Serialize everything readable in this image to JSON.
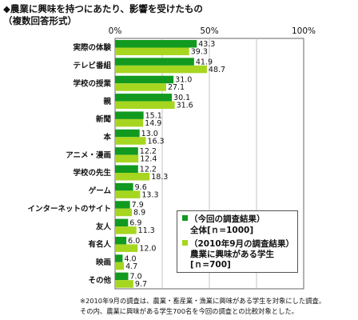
{
  "header": {
    "title": "◆農業に興味を持つにあたり、影響を受けたもの",
    "subtitle": "（複数回答形式）"
  },
  "legend": {
    "s1_line1": "（今回の調査結果）",
    "s1_line2": "全体[ｎ=1000]",
    "s2_line1": "（2010年9月の調査結果）",
    "s2_line2": "農業に興味がある学生",
    "s2_line3": "[ｎ=700]"
  },
  "notes": {
    "line1": "※2010年9月の調査は、農業・畜産業・漁業に興味がある学生を対象にした調査。",
    "line2": "その内、農業に興味がある学生700名を今回の調査との比較対象とした。"
  },
  "chart_data": {
    "type": "bar",
    "orientation": "horizontal",
    "categories": [
      "実際の体験",
      "テレビ番組",
      "学校の授業",
      "親",
      "新聞",
      "本",
      "アニメ・漫画",
      "学校の先生",
      "ゲーム",
      "インターネットのサイト",
      "友人",
      "有名人",
      "映画",
      "その他"
    ],
    "series": [
      {
        "name": "全体[ｎ=1000]",
        "color": "#119a1f",
        "values": [
          43.3,
          41.9,
          31.0,
          30.1,
          15.1,
          13.0,
          12.2,
          12.2,
          9.6,
          7.9,
          6.9,
          6.0,
          4.0,
          7.0
        ]
      },
      {
        "name": "農業に興味がある学生[ｎ=700]",
        "color": "#a6d620",
        "values": [
          39.3,
          48.7,
          27.1,
          31.6,
          14.9,
          16.3,
          12.4,
          18.3,
          13.3,
          8.9,
          11.3,
          12.0,
          4.7,
          9.7
        ]
      }
    ],
    "xlim": [
      0,
      100
    ],
    "xticks": [
      "0%",
      "50%",
      "100%"
    ],
    "grid": true,
    "legend_position": "bottom-right"
  }
}
